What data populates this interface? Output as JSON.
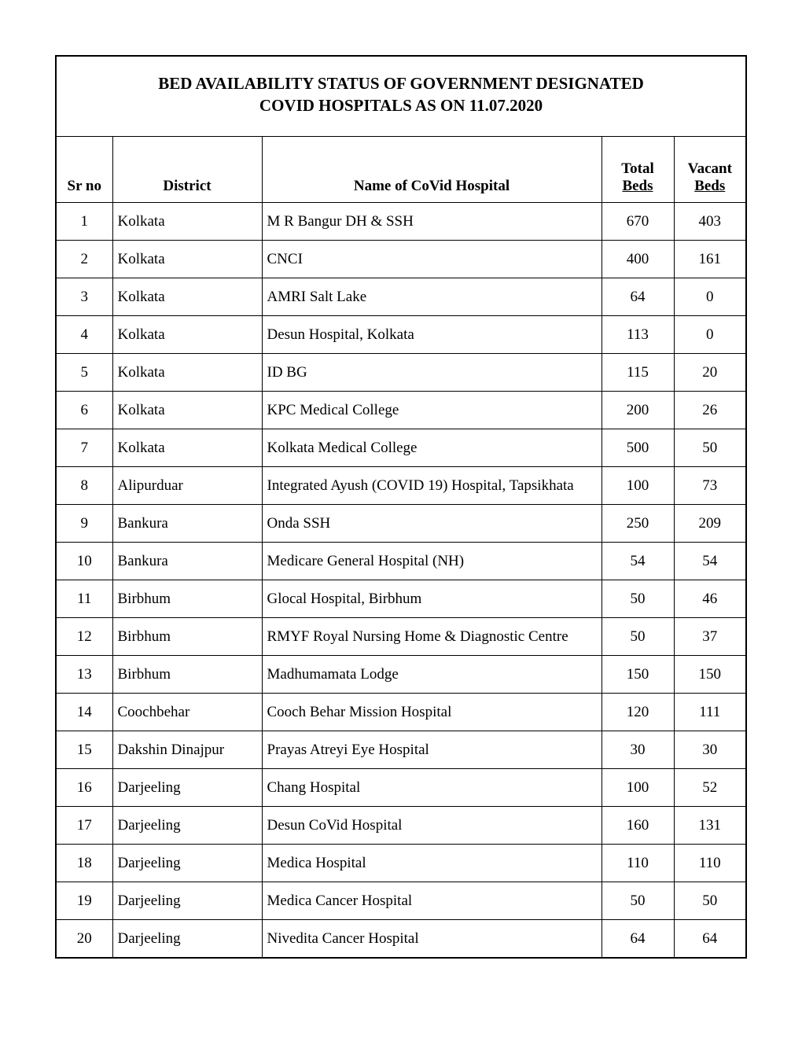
{
  "title_line1": "BED AVAILABILITY STATUS OF GOVERNMENT DESIGNATED",
  "title_line2": "COVID HOSPITALS AS ON 11.07.2020",
  "columns": {
    "srno": "Sr no",
    "district": "District",
    "name": "Name of CoVid Hospital",
    "total_l1": "Total",
    "total_l2": "Beds",
    "vacant_l1": "Vacant",
    "vacant_l2": "Beds"
  },
  "rows": [
    {
      "srno": "1",
      "district": "Kolkata",
      "name": "M R Bangur DH & SSH",
      "total": "670",
      "vacant": "403"
    },
    {
      "srno": "2",
      "district": "Kolkata",
      "name": "CNCI",
      "total": "400",
      "vacant": "161"
    },
    {
      "srno": "3",
      "district": "Kolkata",
      "name": "AMRI Salt Lake",
      "total": "64",
      "vacant": "0"
    },
    {
      "srno": "4",
      "district": "Kolkata",
      "name": "Desun Hospital, Kolkata",
      "total": "113",
      "vacant": "0"
    },
    {
      "srno": "5",
      "district": "Kolkata",
      "name": "ID BG",
      "total": "115",
      "vacant": "20"
    },
    {
      "srno": "6",
      "district": "Kolkata",
      "name": "KPC Medical College",
      "total": "200",
      "vacant": "26"
    },
    {
      "srno": "7",
      "district": "Kolkata",
      "name": "Kolkata Medical College",
      "total": "500",
      "vacant": "50"
    },
    {
      "srno": "8",
      "district": "Alipurduar",
      "name": "Integrated Ayush (COVID 19) Hospital, Tapsikhata",
      "total": "100",
      "vacant": "73"
    },
    {
      "srno": "9",
      "district": "Bankura",
      "name": "Onda SSH",
      "total": "250",
      "vacant": "209"
    },
    {
      "srno": "10",
      "district": "Bankura",
      "name": "Medicare General Hospital (NH)",
      "total": "54",
      "vacant": "54"
    },
    {
      "srno": "11",
      "district": "Birbhum",
      "name": "Glocal Hospital, Birbhum",
      "total": "50",
      "vacant": "46"
    },
    {
      "srno": "12",
      "district": "Birbhum",
      "name": "RMYF Royal Nursing Home & Diagnostic Centre",
      "total": "50",
      "vacant": "37"
    },
    {
      "srno": "13",
      "district": "Birbhum",
      "name": "Madhumamata Lodge",
      "total": "150",
      "vacant": "150"
    },
    {
      "srno": "14",
      "district": "Coochbehar",
      "name": "Cooch Behar Mission Hospital",
      "total": "120",
      "vacant": "111"
    },
    {
      "srno": "15",
      "district": "Dakshin Dinajpur",
      "name": "Prayas Atreyi Eye Hospital",
      "total": "30",
      "vacant": "30"
    },
    {
      "srno": "16",
      "district": "Darjeeling",
      "name": "Chang Hospital",
      "total": "100",
      "vacant": "52"
    },
    {
      "srno": "17",
      "district": "Darjeeling",
      "name": "Desun CoVid Hospital",
      "total": "160",
      "vacant": "131"
    },
    {
      "srno": "18",
      "district": "Darjeeling",
      "name": "Medica Hospital",
      "total": "110",
      "vacant": "110"
    },
    {
      "srno": "19",
      "district": "Darjeeling",
      "name": "Medica Cancer Hospital",
      "total": "50",
      "vacant": "50"
    },
    {
      "srno": "20",
      "district": "Darjeeling",
      "name": "Nivedita Cancer Hospital",
      "total": "64",
      "vacant": "64"
    }
  ]
}
